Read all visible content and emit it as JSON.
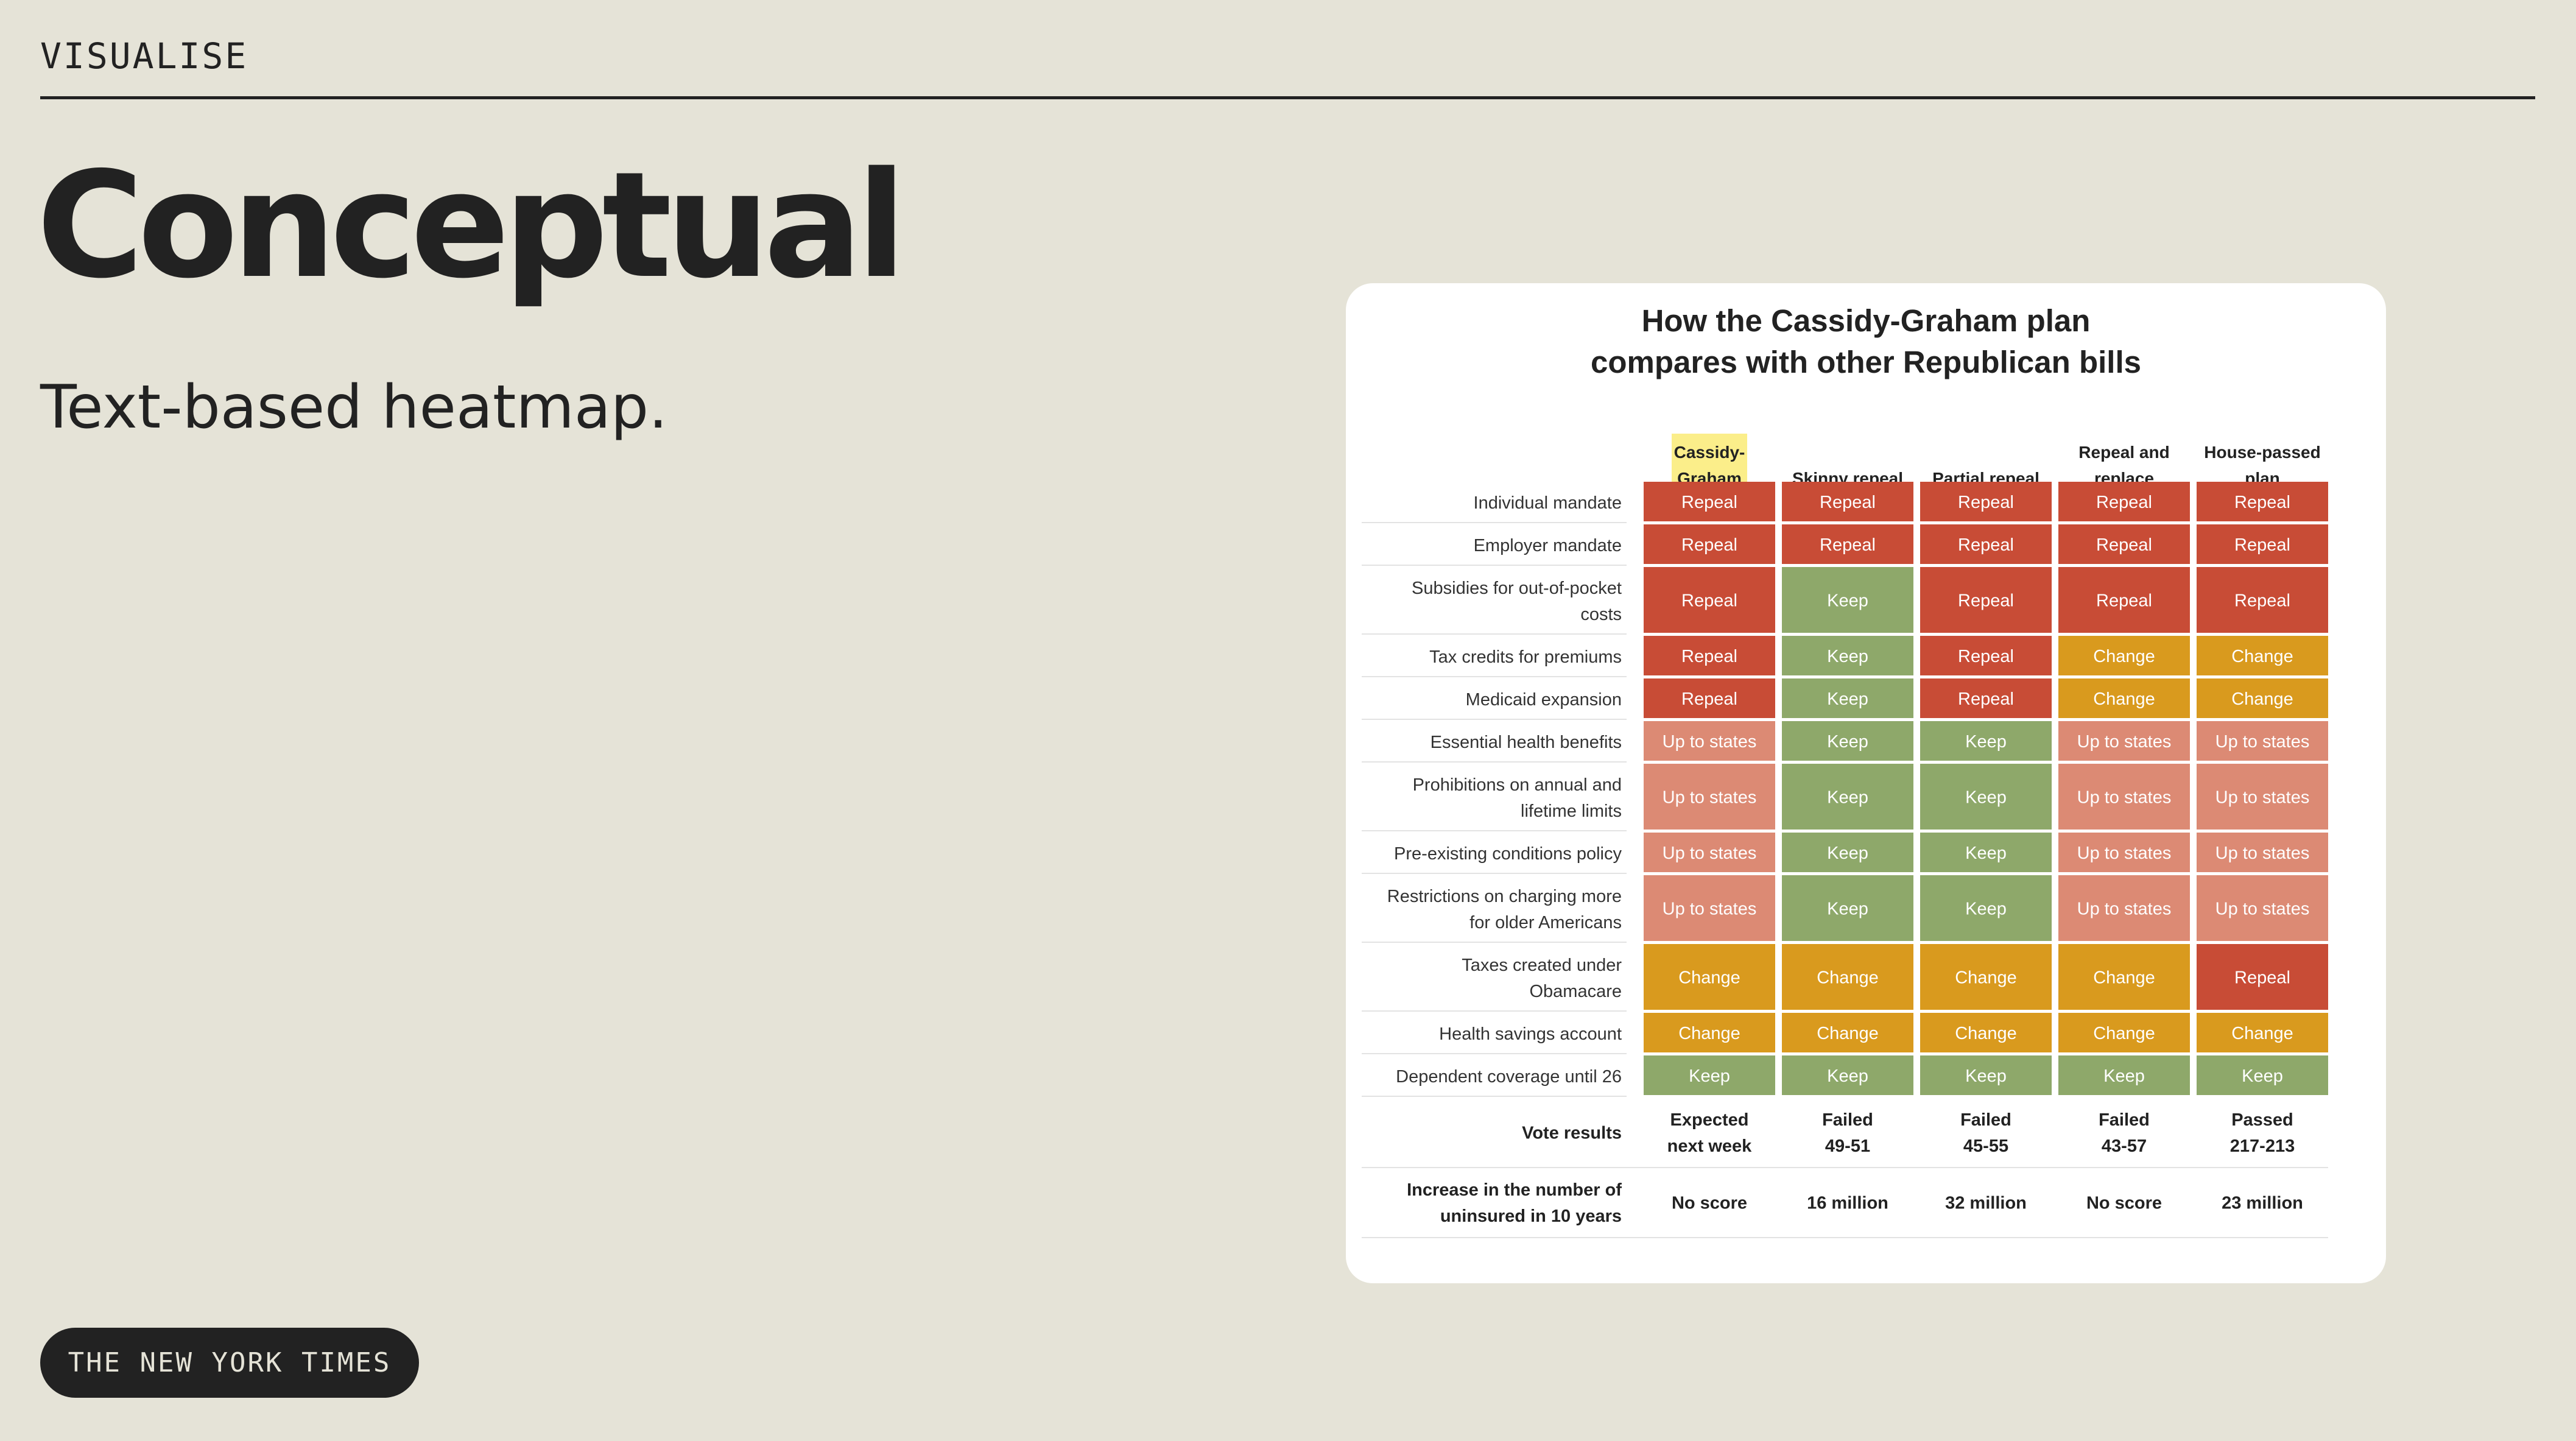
{
  "slide": {
    "kicker": "VISUALISE",
    "headline": "Conceptual",
    "subhead": "Text-based heatmap.",
    "source_pill": "THE NEW YORK TIMES"
  },
  "colors": {
    "Repeal": "#c84c36",
    "Keep": "#8ea86a",
    "Change": "#d99a1e",
    "Up to states": "#dc8a74",
    "highlight": "#fbee8a",
    "background": "#e5e3d7"
  },
  "chart_data": {
    "type": "table",
    "title": [
      "How the Cassidy-Graham plan",
      "compares with other Republican bills"
    ],
    "columns": [
      {
        "label": [
          "Cassidy-",
          "Graham"
        ],
        "highlight": true
      },
      {
        "label": [
          "Skinny repeal"
        ]
      },
      {
        "label": [
          "Partial repeal"
        ]
      },
      {
        "label": [
          "Repeal and",
          "replace"
        ]
      },
      {
        "label": [
          "House-passed",
          "plan"
        ]
      }
    ],
    "rows": [
      {
        "label": [
          "Individual mandate"
        ],
        "values": [
          "Repeal",
          "Repeal",
          "Repeal",
          "Repeal",
          "Repeal"
        ]
      },
      {
        "label": [
          "Employer mandate"
        ],
        "values": [
          "Repeal",
          "Repeal",
          "Repeal",
          "Repeal",
          "Repeal"
        ]
      },
      {
        "label": [
          "Subsidies for out-of-pocket",
          "costs"
        ],
        "values": [
          "Repeal",
          "Keep",
          "Repeal",
          "Repeal",
          "Repeal"
        ]
      },
      {
        "label": [
          "Tax credits for premiums"
        ],
        "values": [
          "Repeal",
          "Keep",
          "Repeal",
          "Change",
          "Change"
        ]
      },
      {
        "label": [
          "Medicaid expansion"
        ],
        "values": [
          "Repeal",
          "Keep",
          "Repeal",
          "Change",
          "Change"
        ]
      },
      {
        "label": [
          "Essential health benefits"
        ],
        "values": [
          "Up to states",
          "Keep",
          "Keep",
          "Up to states",
          "Up to states"
        ]
      },
      {
        "label": [
          "Prohibitions on annual and",
          "lifetime limits"
        ],
        "values": [
          "Up to states",
          "Keep",
          "Keep",
          "Up to states",
          "Up to states"
        ]
      },
      {
        "label": [
          "Pre-existing conditions policy"
        ],
        "values": [
          "Up to states",
          "Keep",
          "Keep",
          "Up to states",
          "Up to states"
        ]
      },
      {
        "label": [
          "Restrictions on charging more",
          "for older Americans"
        ],
        "values": [
          "Up to states",
          "Keep",
          "Keep",
          "Up to states",
          "Up to states"
        ]
      },
      {
        "label": [
          "Taxes created under",
          "Obamacare"
        ],
        "values": [
          "Change",
          "Change",
          "Change",
          "Change",
          "Repeal"
        ]
      },
      {
        "label": [
          "Health savings account"
        ],
        "values": [
          "Change",
          "Change",
          "Change",
          "Change",
          "Change"
        ]
      },
      {
        "label": [
          "Dependent coverage until 26"
        ],
        "values": [
          "Keep",
          "Keep",
          "Keep",
          "Keep",
          "Keep"
        ]
      }
    ],
    "summary_rows": [
      {
        "label": [
          "Vote results"
        ],
        "values": [
          [
            "Expected",
            "next week"
          ],
          [
            "Failed",
            "49-51"
          ],
          [
            "Failed",
            "45-55"
          ],
          [
            "Failed",
            "43-57"
          ],
          [
            "Passed",
            "217-213"
          ]
        ]
      },
      {
        "label": [
          "Increase in the number of",
          "uninsured in 10 years"
        ],
        "values": [
          [
            "No score"
          ],
          [
            "16 million"
          ],
          [
            "32 million"
          ],
          [
            "No score"
          ],
          [
            "23 million"
          ]
        ]
      }
    ]
  }
}
